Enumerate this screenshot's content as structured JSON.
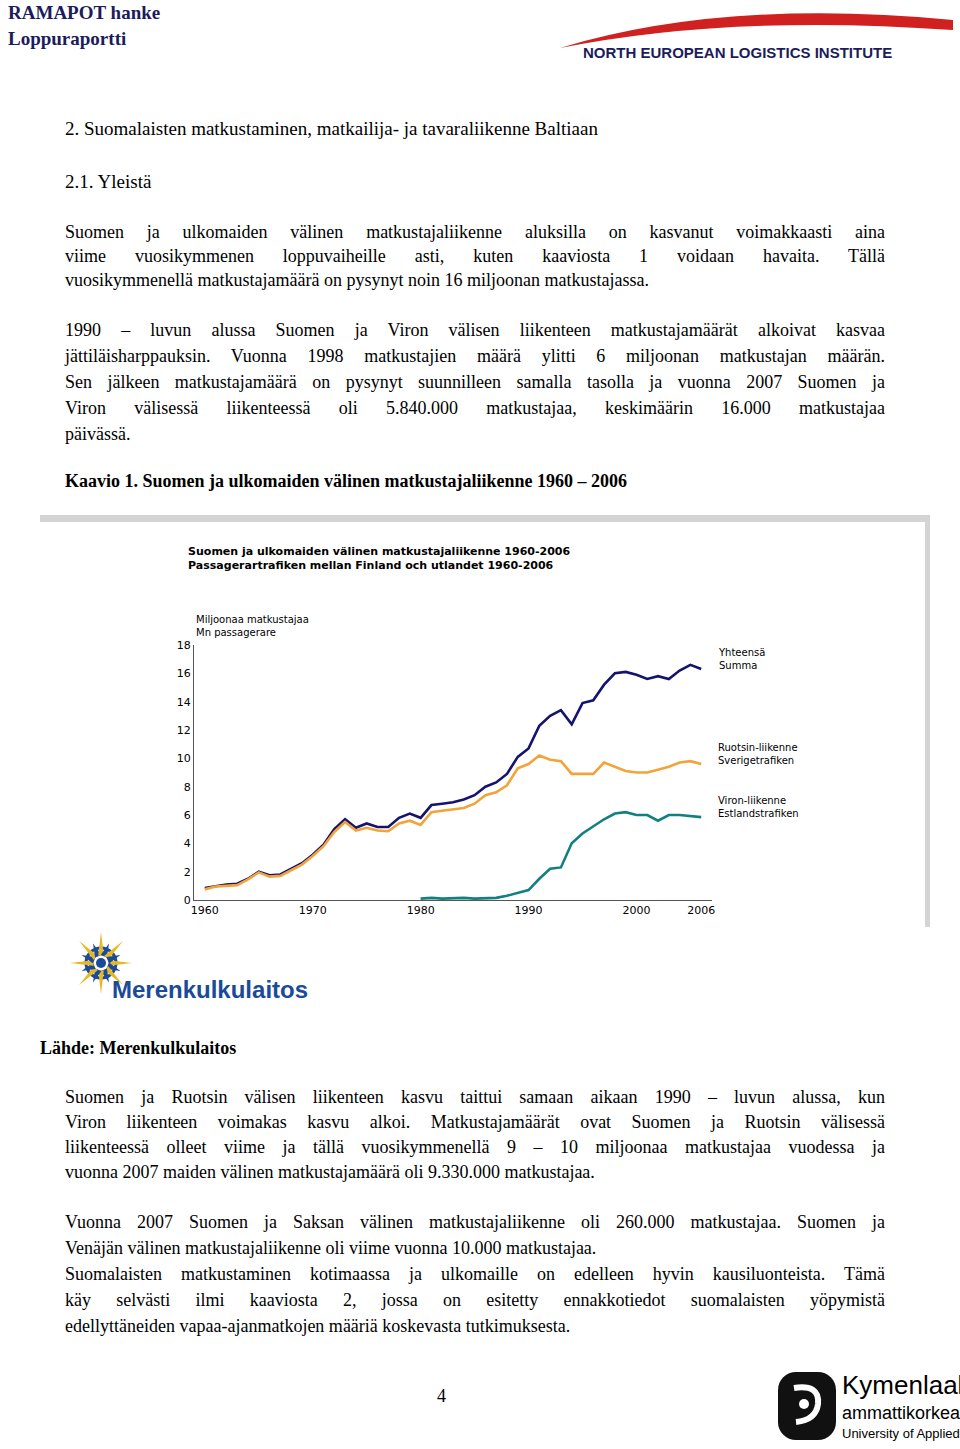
{
  "header": {
    "project": "RAMAPOT hanke",
    "report": "Loppuraportti",
    "institute": "NORTH EUROPEAN LOGISTICS INSTITUTE"
  },
  "section_title": "2. Suomalaisten matkustaminen, matkailija- ja tavaraliikenne Baltiaan",
  "subsection_title": "2.1. Yleistä",
  "paragraphs_before": [
    [
      "Suomen ja ulkomaiden välinen matkustajaliikenne aluksilla on kasvanut voimakkaasti aina",
      "viime vuosikymmenen loppuvaiheille asti, kuten kaaviosta 1 voidaan havaita. Tällä",
      "vuosikymmenellä matkustajamäärä on pysynyt noin 16 miljoonan matkustajassa."
    ],
    [
      "1990 – luvun alussa Suomen ja Viron välisen liikenteen matkustajamäärät alkoivat kasvaa",
      "jättiläisharppauksin. Vuonna 1998 matkustajien määrä ylitti 6 miljoonan matkustajan määrän.",
      "Sen jälkeen matkustajamäärä on pysynyt suunnilleen samalla tasolla ja vuonna 2007 Suomen ja",
      "Viron välisessä liikenteessä oli 5.840.000 matkustajaa, keskimäärin 16.000 matkustajaa",
      "päivässä."
    ]
  ],
  "figure_caption": "Kaavio 1. Suomen ja ulkomaiden välinen matkustajaliikenne 1960 – 2006",
  "chart_data": {
    "type": "line",
    "title": "Suomen ja ulkomaiden välinen matkustajaliikenne 1960-2006\nPassagerartrafiken mellan Finland och utlandet 1960-2006",
    "y_label": "Miljoonaa matkustajaa\nMn passagerare",
    "x": [
      1960,
      1961,
      1962,
      1963,
      1964,
      1965,
      1966,
      1967,
      1968,
      1969,
      1970,
      1971,
      1972,
      1973,
      1974,
      1975,
      1976,
      1977,
      1978,
      1979,
      1980,
      1981,
      1982,
      1983,
      1984,
      1985,
      1986,
      1987,
      1988,
      1989,
      1990,
      1991,
      1992,
      1993,
      1994,
      1995,
      1996,
      1997,
      1998,
      1999,
      2000,
      2001,
      2002,
      2003,
      2004,
      2005,
      2006
    ],
    "series": [
      {
        "name": "Yhteensä\nSumma",
        "color": "#14146e",
        "values": [
          0.85,
          1.0,
          1.1,
          1.15,
          1.5,
          2.0,
          1.75,
          1.8,
          2.2,
          2.6,
          3.2,
          3.9,
          5.0,
          5.7,
          5.1,
          5.4,
          5.15,
          5.15,
          5.8,
          6.1,
          5.8,
          6.7,
          6.8,
          6.9,
          7.1,
          7.4,
          8.0,
          8.3,
          8.9,
          10.1,
          10.7,
          12.3,
          13.0,
          13.4,
          12.4,
          13.9,
          14.1,
          15.2,
          16.0,
          16.1,
          15.9,
          15.6,
          15.8,
          15.6,
          16.2,
          16.6,
          16.3
        ]
      },
      {
        "name": "Ruotsin-liikenne\nSverigetrafiken",
        "color": "#f2a33a",
        "values": [
          0.75,
          0.95,
          1.0,
          1.05,
          1.45,
          1.95,
          1.65,
          1.7,
          2.1,
          2.5,
          3.1,
          3.8,
          4.8,
          5.5,
          4.9,
          5.1,
          4.9,
          4.85,
          5.4,
          5.6,
          5.3,
          6.2,
          6.3,
          6.4,
          6.5,
          6.8,
          7.4,
          7.6,
          8.1,
          9.3,
          9.6,
          10.2,
          9.9,
          9.8,
          8.9,
          8.9,
          8.9,
          9.7,
          9.4,
          9.1,
          9.0,
          9.0,
          9.2,
          9.4,
          9.7,
          9.8,
          9.6
        ]
      },
      {
        "name": "Viron-liikenne\nEstlandstrafiken",
        "color": "#138080",
        "values": [
          null,
          null,
          null,
          null,
          null,
          null,
          null,
          null,
          null,
          null,
          null,
          null,
          null,
          null,
          null,
          null,
          null,
          null,
          null,
          null,
          0.1,
          0.15,
          0.1,
          0.15,
          0.15,
          0.1,
          0.15,
          0.15,
          0.3,
          0.5,
          0.7,
          1.5,
          2.2,
          2.3,
          4.0,
          4.7,
          5.2,
          5.7,
          6.1,
          6.2,
          6.0,
          6.0,
          5.6,
          6.0,
          6.0,
          5.9,
          5.85
        ]
      }
    ],
    "xlim": [
      1959,
      2007
    ],
    "ylim": [
      0,
      18
    ],
    "xticks": [
      1960,
      1970,
      1980,
      1990,
      2000,
      2006
    ],
    "yticks": [
      0,
      2,
      4,
      6,
      8,
      10,
      12,
      14,
      16,
      18
    ],
    "grid": false
  },
  "source_logo": "Merenkulkulaitos",
  "source": "Lähde: Merenkulkulaitos",
  "paragraphs_after": [
    [
      "Suomen ja Ruotsin välisen liikenteen kasvu taittui samaan aikaan 1990 – luvun alussa, kun",
      "Viron liikenteen voimakas kasvu alkoi. Matkustajamäärät ovat Suomen ja Ruotsin välisessä",
      "liikenteessä olleet viime ja tällä vuosikymmenellä 9 – 10 miljoonaa matkustajaa vuodessa ja",
      "vuonna 2007 maiden välinen matkustajamäärä oli 9.330.000 matkustajaa."
    ],
    [
      "Vuonna 2007 Suomen ja Saksan välinen matkustajaliikenne oli 260.000 matkustajaa. Suomen ja",
      "Venäjän välinen matkustajaliikenne oli viime vuonna 10.000 matkustajaa."
    ],
    [
      "Suomalaisten matkustaminen kotimaassa ja ulkomaille on edelleen hyvin kausiluonteista. Tämä",
      "käy selvästi ilmi kaaviosta 2, jossa on esitetty ennakkotiedot suomalaisten yöpymistä",
      "edellyttäneiden vapaa-ajanmatkojen määriä koskevasta tutkimuksesta."
    ]
  ],
  "page_number": "4",
  "footer_logo": {
    "name": "Kymenlaakson",
    "line2": "ammattikorkeakoulu",
    "line3": "University of Applied Sciences"
  }
}
